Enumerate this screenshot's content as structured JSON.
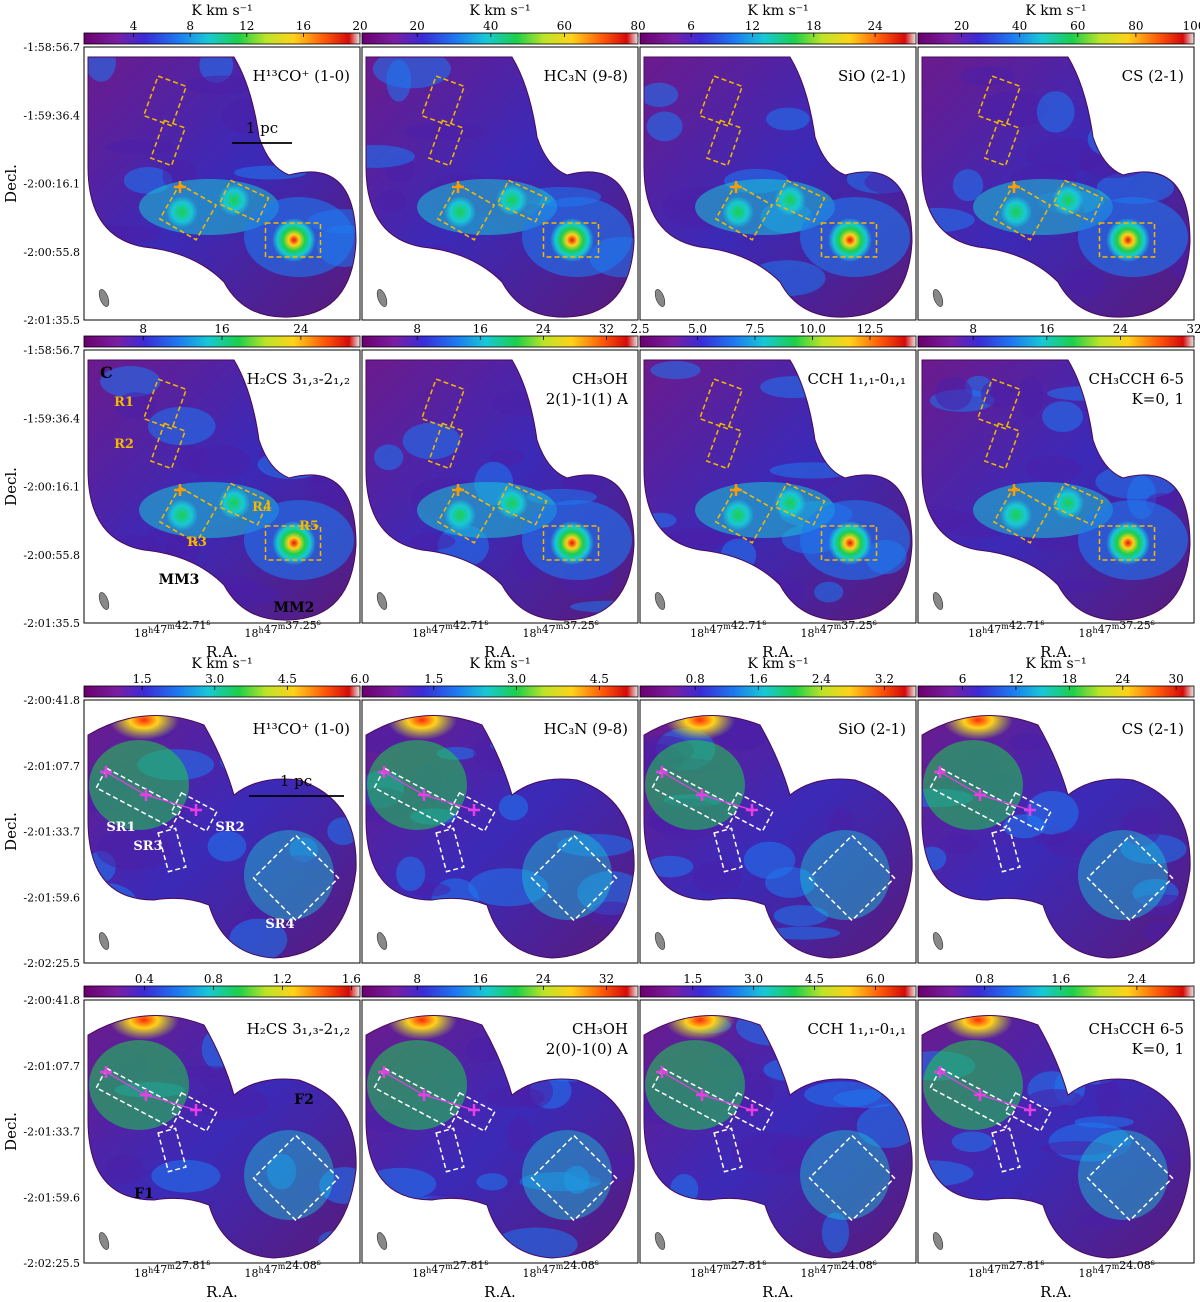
{
  "figure": {
    "colorbar_unit": "K km s⁻¹",
    "axis_x_label": "R.A.",
    "axis_y_label": "Decl."
  },
  "blocks": [
    {
      "id": "C",
      "block_label": "C",
      "dec_ticks": [
        "-1:58:56.7",
        "-1:59:36.4",
        "-2:00:16.1",
        "-2:00:55.8",
        "-2:01:35.5"
      ],
      "ra_ticks": [
        "18h47m42.71s",
        "18h47m37.25s"
      ],
      "rows": [
        {
          "show_unit": true,
          "panels": [
            {
              "line": "H¹³CO⁺ (1-0)",
              "cbar": {
                "ticks": [
                  "4",
                  "8",
                  "12",
                  "16",
                  "20"
                ],
                "min": 0.5,
                "max": 20
              },
              "scalebar": "1 pc"
            },
            {
              "line": "HC₃N (9-8)",
              "cbar": {
                "ticks": [
                  "20",
                  "40",
                  "60",
                  "80"
                ],
                "min": 5,
                "max": 80
              }
            },
            {
              "line": "SiO (2-1)",
              "cbar": {
                "ticks": [
                  "6",
                  "12",
                  "18",
                  "24"
                ],
                "min": 1,
                "max": 28
              }
            },
            {
              "line": "CS (2-1)",
              "cbar": {
                "ticks": [
                  "20",
                  "40",
                  "60",
                  "80",
                  "100"
                ],
                "min": 5,
                "max": 100
              }
            }
          ]
        },
        {
          "show_unit": false,
          "panels": [
            {
              "line": "H₂CS 3₁,₃-2₁,₂",
              "cbar": {
                "ticks": [
                  "8",
                  "16",
                  "24"
                ],
                "min": 2,
                "max": 30
              },
              "labels": {
                "block": "C",
                "regions": [
                  "R1",
                  "R2",
                  "R3",
                  "R4",
                  "R5"
                ],
                "cores": [
                  "MM3",
                  "MM2"
                ]
              }
            },
            {
              "line": "CH₃OH",
              "line2": "2(1)-1(1) A",
              "cbar": {
                "ticks": [
                  "8",
                  "16",
                  "24",
                  "32"
                ],
                "min": 1,
                "max": 36
              }
            },
            {
              "line": "CCH 1₁,₁-0₁,₁",
              "cbar": {
                "ticks": [
                  "2.5",
                  "5.0",
                  "7.5",
                  "10.0",
                  "12.5"
                ],
                "min": 2.5,
                "max": 14.5
              }
            },
            {
              "line": "CH₃CCH 6-5",
              "line2": "K=0, 1",
              "cbar": {
                "ticks": [
                  "8",
                  "16",
                  "24",
                  "32"
                ],
                "min": 2,
                "max": 32
              }
            }
          ]
        }
      ]
    },
    {
      "id": "SR",
      "dec_ticks": [
        "-2:00:41.8",
        "-2:01:07.7",
        "-2:01:33.7",
        "-2:01:59.6",
        "-2:02:25.5"
      ],
      "ra_ticks": [
        "18h47m27.81s",
        "18h47m24.08s"
      ],
      "rows": [
        {
          "show_unit": true,
          "panels": [
            {
              "line": "H¹³CO⁺ (1-0)",
              "cbar": {
                "ticks": [
                  "1.5",
                  "3.0",
                  "4.5",
                  "6.0"
                ],
                "min": 0.3,
                "max": 6.0
              },
              "scalebar": "1 pc",
              "labels": {
                "regions": [
                  "SR1",
                  "SR2",
                  "SR3",
                  "SR4"
                ]
              }
            },
            {
              "line": "HC₃N (9-8)",
              "cbar": {
                "ticks": [
                  "1.5",
                  "3.0",
                  "4.5"
                ],
                "min": 0.2,
                "max": 5.2
              }
            },
            {
              "line": "SiO (2-1)",
              "cbar": {
                "ticks": [
                  "0.8",
                  "1.6",
                  "2.4",
                  "3.2"
                ],
                "min": 0.1,
                "max": 3.6
              }
            },
            {
              "line": "CS (2-1)",
              "cbar": {
                "ticks": [
                  "6",
                  "12",
                  "18",
                  "24",
                  "30"
                ],
                "min": 1,
                "max": 32
              }
            }
          ]
        },
        {
          "show_unit": false,
          "panels": [
            {
              "line": "H₂CS 3₁,₃-2₁,₂",
              "cbar": {
                "ticks": [
                  "0.4",
                  "0.8",
                  "1.2",
                  "1.6"
                ],
                "min": 0.05,
                "max": 1.65
              },
              "labels": {
                "filaments": [
                  "F1",
                  "F2"
                ]
              }
            },
            {
              "line": "CH₃OH",
              "line2": "2(0)-1(0) A",
              "cbar": {
                "ticks": [
                  "8",
                  "16",
                  "24",
                  "32"
                ],
                "min": 1,
                "max": 36
              }
            },
            {
              "line": "CCH 1₁,₁-0₁,₁",
              "cbar": {
                "ticks": [
                  "1.5",
                  "3.0",
                  "4.5",
                  "6.0"
                ],
                "min": 0.2,
                "max": 7.0
              }
            },
            {
              "line": "CH₃CCH 6-5",
              "line2": "K=0, 1",
              "cbar": {
                "ticks": [
                  "0.8",
                  "1.6",
                  "2.4"
                ],
                "min": 0.1,
                "max": 3.0
              }
            }
          ]
        }
      ]
    }
  ]
}
